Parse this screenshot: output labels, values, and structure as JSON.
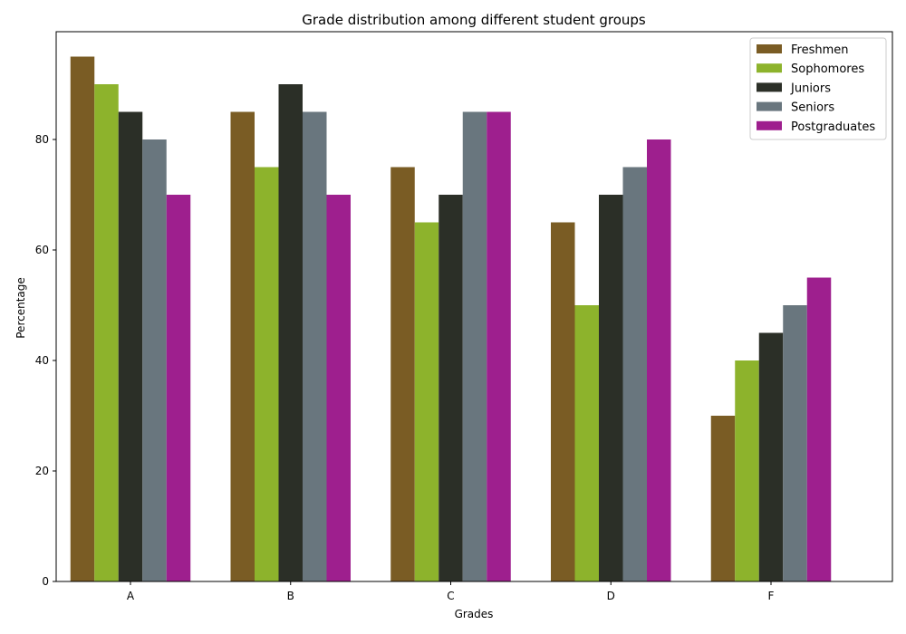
{
  "chart_data": {
    "type": "bar",
    "title": "Grade distribution among different student groups",
    "xlabel": "Grades",
    "ylabel": "Percentage",
    "categories": [
      "A",
      "B",
      "C",
      "D",
      "F"
    ],
    "ylim": [
      0,
      100
    ],
    "yticks": [
      0,
      20,
      40,
      60,
      80
    ],
    "grid": false,
    "legend_position": "top-right",
    "series": [
      {
        "name": "Freshmen",
        "color": "#7a5c24",
        "values": [
          95,
          85,
          75,
          65,
          30
        ]
      },
      {
        "name": "Sophomores",
        "color": "#8db32c",
        "values": [
          90,
          75,
          65,
          50,
          40
        ]
      },
      {
        "name": "Juniors",
        "color": "#2b2f27",
        "values": [
          85,
          90,
          70,
          70,
          45
        ]
      },
      {
        "name": "Seniors",
        "color": "#69767e",
        "values": [
          80,
          85,
          85,
          75,
          50
        ]
      },
      {
        "name": "Postgraduates",
        "color": "#9e1f8e",
        "values": [
          70,
          70,
          85,
          80,
          55
        ]
      }
    ]
  }
}
